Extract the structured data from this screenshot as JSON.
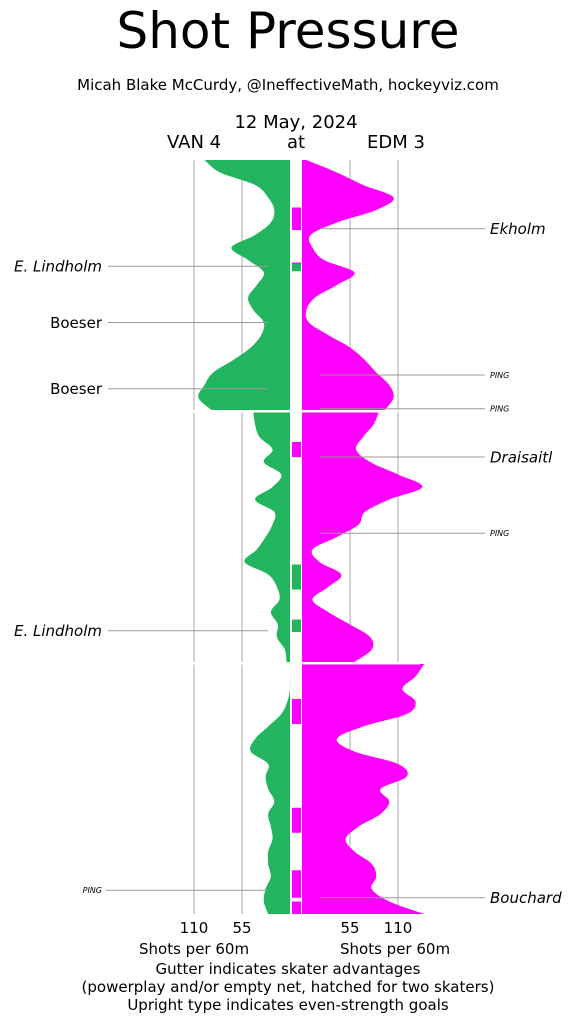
{
  "title": "Shot Pressure",
  "subtitle": "Micah Blake McCurdy, @IneffectiveMath, hockeyviz.com",
  "date": "12 May, 2024",
  "teams": {
    "away": "VAN 4",
    "at": "at",
    "home": "EDM 3"
  },
  "colors": {
    "away": "#22b45e",
    "home": "#ff00ff",
    "grid": "#aaaaaa",
    "label_line": "#999999"
  },
  "footer": {
    "axis_label_left": "Shots per 60m",
    "axis_label_right": "Shots per 60m",
    "note_1": "Gutter indicates skater advantages",
    "note_2": "(powerplay and/or empty net, hatched for two skaters)",
    "note_3": "Upright type indicates even-strength goals"
  },
  "chart_data": {
    "type": "area",
    "orientation": "vertical time axis, mirrored rates",
    "title": "Shot Pressure",
    "x_ticks": {
      "left": [
        "110",
        "55"
      ],
      "right": [
        "55",
        "110"
      ]
    },
    "xlabel": "Shots per 60m",
    "x_range_per_side": [
      0,
      120
    ],
    "periods": 3,
    "minutes_per_period": 20,
    "series": [
      {
        "name": "VAN 4",
        "side": "left",
        "values": [
          [
            [
              0,
              98
            ],
            [
              1,
              80
            ],
            [
              2,
              40
            ],
            [
              3,
              25
            ],
            [
              4,
              18
            ],
            [
              5,
              22
            ],
            [
              6,
              40
            ],
            [
              7,
              67
            ],
            [
              8,
              48
            ],
            [
              9,
              30
            ],
            [
              10,
              38
            ],
            [
              11,
              48
            ],
            [
              12,
              42
            ],
            [
              13,
              30
            ],
            [
              14,
              33
            ],
            [
              15,
              45
            ],
            [
              16,
              65
            ],
            [
              17,
              88
            ],
            [
              18,
              98
            ],
            [
              19,
              105
            ],
            [
              20,
              90
            ]
          ],
          [
            [
              0,
              42
            ],
            [
              1,
              40
            ],
            [
              2,
              35
            ],
            [
              3,
              20
            ],
            [
              4,
              30
            ],
            [
              5,
              10
            ],
            [
              6,
              20
            ],
            [
              7,
              40
            ],
            [
              8,
              18
            ],
            [
              9,
              20
            ],
            [
              10,
              28
            ],
            [
              11,
              38
            ],
            [
              12,
              52
            ],
            [
              13,
              25
            ],
            [
              14,
              15
            ],
            [
              15,
              12
            ],
            [
              16,
              22
            ],
            [
              17,
              14
            ],
            [
              18,
              15
            ],
            [
              19,
              6
            ],
            [
              20,
              4
            ]
          ],
          [
            [
              0,
              0
            ],
            [
              1,
              0
            ],
            [
              2,
              0
            ],
            [
              3,
              3
            ],
            [
              4,
              10
            ],
            [
              5,
              25
            ],
            [
              6,
              40
            ],
            [
              7,
              45
            ],
            [
              8,
              25
            ],
            [
              9,
              28
            ],
            [
              10,
              25
            ],
            [
              11,
              18
            ],
            [
              12,
              25
            ],
            [
              13,
              22
            ],
            [
              14,
              20
            ],
            [
              15,
              25
            ],
            [
              16,
              25
            ],
            [
              17,
              22
            ],
            [
              18,
              28
            ],
            [
              19,
              30
            ],
            [
              20,
              25
            ]
          ]
        ]
      },
      {
        "name": "EDM 3",
        "side": "right",
        "values": [
          [
            [
              0,
              5
            ],
            [
              1,
              40
            ],
            [
              2,
              70
            ],
            [
              3,
              105
            ],
            [
              4,
              85
            ],
            [
              5,
              40
            ],
            [
              6,
              10
            ],
            [
              7,
              12
            ],
            [
              8,
              25
            ],
            [
              9,
              60
            ],
            [
              10,
              40
            ],
            [
              11,
              15
            ],
            [
              12,
              5
            ],
            [
              13,
              8
            ],
            [
              14,
              30
            ],
            [
              15,
              55
            ],
            [
              16,
              72
            ],
            [
              17,
              85
            ],
            [
              18,
              100
            ],
            [
              19,
              105
            ],
            [
              20,
              95
            ]
          ],
          [
            [
              0,
              88
            ],
            [
              1,
              82
            ],
            [
              2,
              70
            ],
            [
              3,
              62
            ],
            [
              4,
              78
            ],
            [
              5,
              110
            ],
            [
              6,
              138
            ],
            [
              7,
              100
            ],
            [
              8,
              72
            ],
            [
              9,
              65
            ],
            [
              10,
              40
            ],
            [
              11,
              12
            ],
            [
              12,
              20
            ],
            [
              13,
              45
            ],
            [
              14,
              30
            ],
            [
              15,
              12
            ],
            [
              16,
              30
            ],
            [
              17,
              55
            ],
            [
              18,
              78
            ],
            [
              19,
              80
            ],
            [
              20,
              60
            ]
          ],
          [
            [
              0,
              140
            ],
            [
              1,
              130
            ],
            [
              2,
              115
            ],
            [
              3,
              130
            ],
            [
              4,
              120
            ],
            [
              5,
              70
            ],
            [
              6,
              40
            ],
            [
              7,
              60
            ],
            [
              8,
              110
            ],
            [
              9,
              120
            ],
            [
              10,
              90
            ],
            [
              11,
              100
            ],
            [
              12,
              90
            ],
            [
              13,
              65
            ],
            [
              14,
              50
            ],
            [
              15,
              60
            ],
            [
              16,
              80
            ],
            [
              17,
              85
            ],
            [
              18,
              80
            ],
            [
              19,
              100
            ],
            [
              20,
              140
            ]
          ]
        ]
      }
    ],
    "gutter_bars": [
      {
        "period": 1,
        "start": 3.8,
        "end": 5.6
      },
      {
        "period": 1,
        "start": 8.2,
        "end": 8.8
      },
      {
        "period": 2,
        "start": 2.4,
        "end": 3.6
      },
      {
        "period": 2,
        "start": 12.2,
        "end": 14.2
      },
      {
        "period": 2,
        "start": 16.6,
        "end": 17.6
      },
      {
        "period": 3,
        "start": 2.8,
        "end": 4.8
      },
      {
        "period": 3,
        "start": 11.5,
        "end": 13.5
      },
      {
        "period": 3,
        "start": 16.5,
        "end": 18.7
      },
      {
        "period": 3,
        "start": 19.0,
        "end": 20.0
      }
    ],
    "goals": [
      {
        "team": "VAN 4",
        "label": "E. Lindholm",
        "period": 1,
        "time": 8.5,
        "even_strength": false
      },
      {
        "team": "VAN 4",
        "label": "Boeser",
        "period": 1,
        "time": 13.0,
        "even_strength": true
      },
      {
        "team": "VAN 4",
        "label": "Boeser",
        "period": 1,
        "time": 18.3,
        "even_strength": true
      },
      {
        "team": "VAN 4",
        "label": "E. Lindholm",
        "period": 2,
        "time": 17.5,
        "even_strength": false
      },
      {
        "team": "VAN 4",
        "label": "PING",
        "period": 3,
        "time": 18.1,
        "even_strength": false
      },
      {
        "team": "EDM 3",
        "label": "Ekholm",
        "period": 1,
        "time": 5.5,
        "even_strength": false
      },
      {
        "team": "EDM 3",
        "label": "PING",
        "period": 1,
        "time": 17.2,
        "even_strength": false
      },
      {
        "team": "EDM 3",
        "label": "PING",
        "period": 1,
        "time": 19.9,
        "even_strength": false
      },
      {
        "team": "EDM 3",
        "label": "Draisaitl",
        "period": 2,
        "time": 3.6,
        "even_strength": false
      },
      {
        "team": "EDM 3",
        "label": "PING",
        "period": 2,
        "time": 9.7,
        "even_strength": false
      },
      {
        "team": "EDM 3",
        "label": "Bouchard",
        "period": 3,
        "time": 18.7,
        "even_strength": false
      }
    ]
  }
}
